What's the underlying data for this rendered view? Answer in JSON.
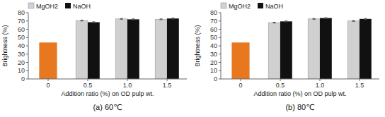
{
  "chart_data": [
    {
      "type": "bar",
      "title": "(a)  60℃",
      "x_label": "Addition ratio (%) on OD pulp wt.",
      "y_label": "Brightness (%)",
      "categories": [
        "0",
        "0.5",
        "1.0",
        "1.5"
      ],
      "series": [
        {
          "name": "MgOH2",
          "color": "#D0D0D0",
          "colors": [
            "#E87820",
            "#D0D0D0",
            "#D0D0D0",
            "#D0D0D0"
          ],
          "values": [
            44.0,
            70.5,
            72.5,
            72.0
          ],
          "errors": [
            null,
            0.5,
            0.5,
            0.5
          ]
        },
        {
          "name": "NaOH",
          "color": "#111111",
          "values": [
            null,
            68.5,
            72.0,
            73.0
          ],
          "errors": [
            null,
            0.5,
            0.5,
            0.5
          ]
        }
      ],
      "ylim": [
        0,
        80
      ],
      "yticks": [
        0,
        10,
        20,
        30,
        40,
        50,
        60,
        70,
        80
      ],
      "legend": "upper left",
      "grid": false
    },
    {
      "type": "bar",
      "title": "(b)  80℃",
      "x_label": "Addition ratio (%) on OD pulp wt.",
      "y_label": "Brightness (%)",
      "categories": [
        "0",
        "0.5",
        "1.0",
        "1.5"
      ],
      "series": [
        {
          "name": "MgOH2",
          "color": "#D0D0D0",
          "colors": [
            "#E87820",
            "#D0D0D0",
            "#D0D0D0",
            "#D0D0D0"
          ],
          "values": [
            44.0,
            68.0,
            72.5,
            70.0
          ],
          "errors": [
            null,
            0.5,
            0.5,
            0.5
          ]
        },
        {
          "name": "NaOH",
          "color": "#111111",
          "values": [
            null,
            69.5,
            73.5,
            72.5
          ],
          "errors": [
            null,
            0.5,
            0.5,
            0.5
          ]
        }
      ],
      "ylim": [
        0,
        80
      ],
      "yticks": [
        0,
        10,
        20,
        30,
        40,
        50,
        60,
        70,
        80
      ],
      "legend": "upper left",
      "grid": false
    }
  ]
}
